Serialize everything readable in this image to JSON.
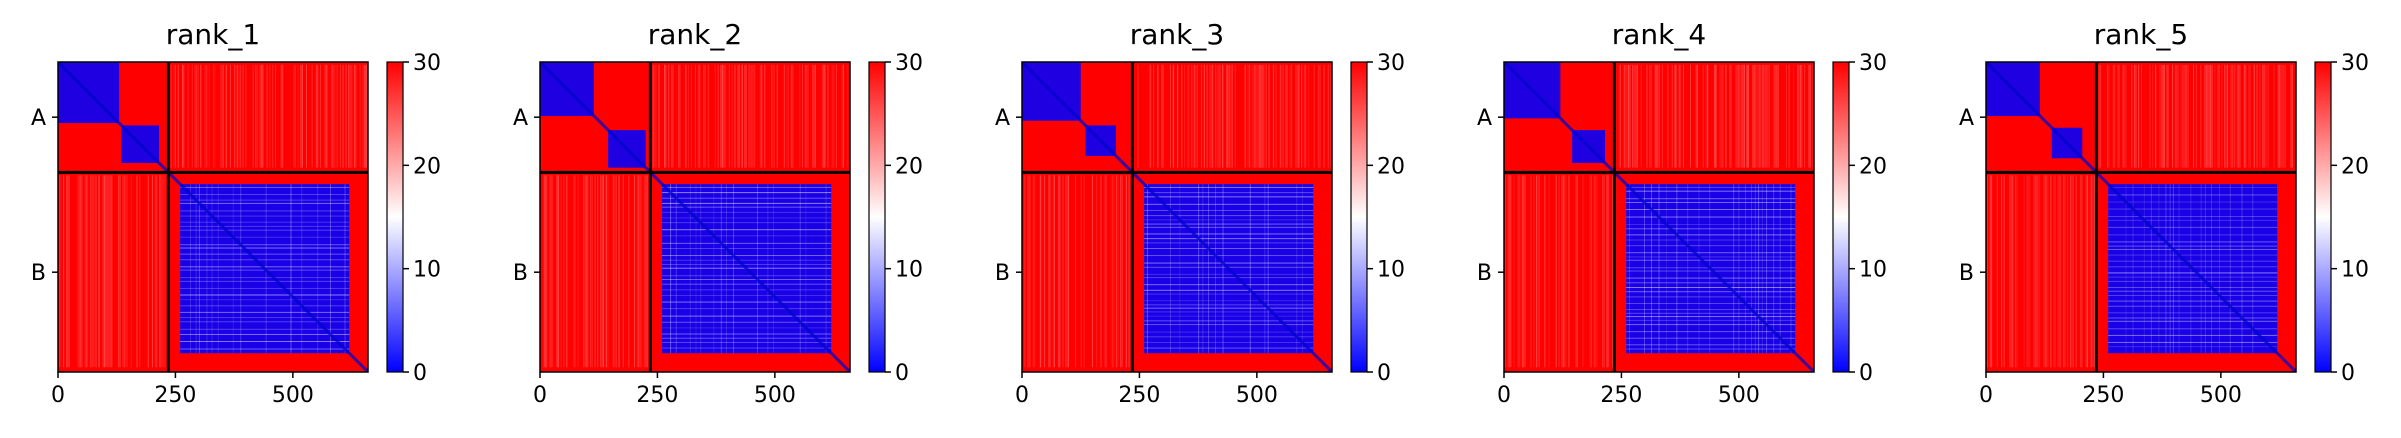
{
  "chart_data": [
    {
      "type": "heatmap",
      "title": "rank_1",
      "chains": [
        "A",
        "B"
      ],
      "chain_boundary": 235,
      "matrix_length": 660,
      "chain_a_domains": [
        [
          0,
          130
        ],
        [
          135,
          215
        ]
      ],
      "chain_b_core": [
        260,
        620
      ],
      "xticks": [
        0,
        250,
        500
      ],
      "colorbar": {
        "range": [
          0,
          30
        ],
        "ticks": [
          0,
          10,
          20,
          30
        ],
        "colors": [
          "#0000ff",
          "#ffffff",
          "#ff0000"
        ]
      }
    },
    {
      "type": "heatmap",
      "title": "rank_2",
      "chains": [
        "A",
        "B"
      ],
      "chain_boundary": 235,
      "matrix_length": 660,
      "chain_a_domains": [
        [
          0,
          115
        ],
        [
          145,
          225
        ]
      ],
      "chain_b_core": [
        260,
        620
      ],
      "xticks": [
        0,
        250,
        500
      ],
      "colorbar": {
        "range": [
          0,
          30
        ],
        "ticks": [
          0,
          10,
          20,
          30
        ],
        "colors": [
          "#0000ff",
          "#ffffff",
          "#ff0000"
        ]
      }
    },
    {
      "type": "heatmap",
      "title": "rank_3",
      "chains": [
        "A",
        "B"
      ],
      "chain_boundary": 235,
      "matrix_length": 660,
      "chain_a_domains": [
        [
          0,
          125
        ],
        [
          135,
          200
        ]
      ],
      "chain_b_core": [
        260,
        620
      ],
      "xticks": [
        0,
        250,
        500
      ],
      "colorbar": {
        "range": [
          0,
          30
        ],
        "ticks": [
          0,
          10,
          20,
          30
        ],
        "colors": [
          "#0000ff",
          "#ffffff",
          "#ff0000"
        ]
      }
    },
    {
      "type": "heatmap",
      "title": "rank_4",
      "chains": [
        "A",
        "B"
      ],
      "chain_boundary": 235,
      "matrix_length": 660,
      "chain_a_domains": [
        [
          0,
          120
        ],
        [
          145,
          215
        ]
      ],
      "chain_b_core": [
        260,
        620
      ],
      "xticks": [
        0,
        250,
        500
      ],
      "colorbar": {
        "range": [
          0,
          30
        ],
        "ticks": [
          0,
          10,
          20,
          30
        ],
        "colors": [
          "#0000ff",
          "#ffffff",
          "#ff0000"
        ]
      }
    },
    {
      "type": "heatmap",
      "title": "rank_5",
      "chains": [
        "A",
        "B"
      ],
      "chain_boundary": 235,
      "matrix_length": 660,
      "chain_a_domains": [
        [
          0,
          115
        ],
        [
          140,
          205
        ]
      ],
      "chain_b_core": [
        260,
        620
      ],
      "xticks": [
        0,
        250,
        500
      ],
      "colorbar": {
        "range": [
          0,
          30
        ],
        "ticks": [
          0,
          10,
          20,
          30
        ],
        "colors": [
          "#0000ff",
          "#ffffff",
          "#ff0000"
        ]
      }
    }
  ]
}
